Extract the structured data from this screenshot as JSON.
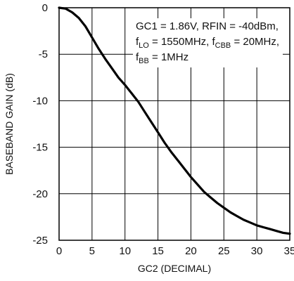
{
  "chart_data": {
    "type": "line",
    "xlabel": "GC2 (DECIMAL)",
    "ylabel": "BASEBAND GAIN (dB)",
    "xlim": [
      0,
      35
    ],
    "ylim": [
      -25,
      0
    ],
    "xticks": [
      0,
      5,
      10,
      15,
      20,
      25,
      30,
      35
    ],
    "yticks": [
      0,
      -5,
      -10,
      -15,
      -20,
      -25
    ],
    "x_tick_labels": [
      "0",
      "5",
      "10",
      "15",
      "20",
      "25",
      "30",
      "35"
    ],
    "y_tick_labels": [
      "0",
      "-5",
      "-10",
      "-15",
      "-20",
      "-25"
    ],
    "grid": true,
    "annotation": {
      "line1": "GC1 = 1.86V, RFIN = -40dBm,",
      "line2_prefix": "f",
      "line2_sub_a": "LO",
      "line2_mid": " = 1550MHz, f",
      "line2_sub_b": "CBB",
      "line2_suffix": " = 20MHz,",
      "line3_prefix": "f",
      "line3_sub": "BB",
      "line3_suffix": " = 1MHz"
    },
    "series": [
      {
        "values": [
          [
            0,
            0.0
          ],
          [
            1,
            -0.1
          ],
          [
            2,
            -0.5
          ],
          [
            3,
            -1.1
          ],
          [
            4,
            -2.0
          ],
          [
            5,
            -3.2
          ],
          [
            6,
            -4.4
          ],
          [
            7,
            -5.5
          ],
          [
            8,
            -6.5
          ],
          [
            9,
            -7.5
          ],
          [
            10,
            -8.3
          ],
          [
            11,
            -9.2
          ],
          [
            12,
            -10.1
          ],
          [
            13,
            -11.2
          ],
          [
            14,
            -12.3
          ],
          [
            15,
            -13.4
          ],
          [
            16,
            -14.5
          ],
          [
            17,
            -15.5
          ],
          [
            18,
            -16.4
          ],
          [
            19,
            -17.3
          ],
          [
            20,
            -18.2
          ],
          [
            21,
            -19.0
          ],
          [
            22,
            -19.8
          ],
          [
            23,
            -20.4
          ],
          [
            24,
            -21.0
          ],
          [
            25,
            -21.5
          ],
          [
            26,
            -22.0
          ],
          [
            27,
            -22.4
          ],
          [
            28,
            -22.8
          ],
          [
            29,
            -23.1
          ],
          [
            30,
            -23.4
          ],
          [
            31,
            -23.6
          ],
          [
            32,
            -23.8
          ],
          [
            33,
            -24.0
          ],
          [
            34,
            -24.2
          ],
          [
            35,
            -24.3
          ]
        ]
      }
    ]
  }
}
